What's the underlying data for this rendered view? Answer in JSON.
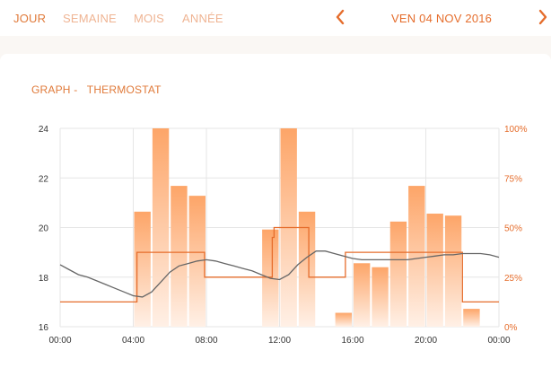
{
  "tabs": [
    {
      "label": "JOUR",
      "active": true
    },
    {
      "label": "SEMAINE",
      "active": false
    },
    {
      "label": "MOIS",
      "active": false
    },
    {
      "label": "ANNÉE",
      "active": false
    }
  ],
  "date_nav": {
    "prev_icon": "chevron-left-icon",
    "next_icon": "chevron-right-icon",
    "date": "VEN 04 NOV 2016"
  },
  "graph": {
    "title": "GRAPH -   THERMOSTAT"
  },
  "colors": {
    "accent": "#e56d2c",
    "bar_top": "#fda568",
    "bar_bottom": "#fff0e6",
    "temp_line": "#666666",
    "grid": "#e6e6e6"
  },
  "chart_data": {
    "type": "bar",
    "x_ticks": [
      "00:00",
      "04:00",
      "08:00",
      "12:00",
      "16:00",
      "20:00",
      "00:00"
    ],
    "x_range_hours": [
      0,
      24
    ],
    "y_left": {
      "range": [
        16,
        24
      ],
      "ticks": [
        "16",
        "18",
        "20",
        "22",
        "24"
      ]
    },
    "y_right": {
      "range": [
        0,
        100
      ],
      "ticks": [
        "0%",
        "25%",
        "50%",
        "75%",
        "100%"
      ]
    },
    "bars_percent": [
      {
        "start": 4.0,
        "end": 5.0,
        "value": 58
      },
      {
        "start": 5.0,
        "end": 6.0,
        "value": 100
      },
      {
        "start": 6.0,
        "end": 7.0,
        "value": 71
      },
      {
        "start": 7.0,
        "end": 8.0,
        "value": 66
      },
      {
        "start": 11.0,
        "end": 12.0,
        "value": 49
      },
      {
        "start": 12.0,
        "end": 13.0,
        "value": 100
      },
      {
        "start": 13.0,
        "end": 14.0,
        "value": 58
      },
      {
        "start": 15.0,
        "end": 16.0,
        "value": 7
      },
      {
        "start": 16.0,
        "end": 17.0,
        "value": 32
      },
      {
        "start": 17.0,
        "end": 18.0,
        "value": 30
      },
      {
        "start": 18.0,
        "end": 19.0,
        "value": 53
      },
      {
        "start": 19.0,
        "end": 20.0,
        "value": 71
      },
      {
        "start": 20.0,
        "end": 21.0,
        "value": 57
      },
      {
        "start": 21.0,
        "end": 22.0,
        "value": 56
      },
      {
        "start": 22.0,
        "end": 23.0,
        "value": 9
      }
    ],
    "setpoint_c": [
      [
        0,
        17.0
      ],
      [
        4.2,
        17.0
      ],
      [
        4.2,
        19.0
      ],
      [
        7.9,
        19.0
      ],
      [
        7.9,
        18.0
      ],
      [
        11.6,
        18.0
      ],
      [
        11.6,
        19.6
      ],
      [
        11.7,
        19.6
      ],
      [
        11.7,
        20.0
      ],
      [
        13.6,
        20.0
      ],
      [
        13.6,
        18.0
      ],
      [
        15.6,
        18.0
      ],
      [
        15.6,
        19.0
      ],
      [
        22.0,
        19.0
      ],
      [
        22.0,
        17.0
      ],
      [
        24,
        17.0
      ]
    ],
    "temperature_c": [
      [
        0.0,
        18.5
      ],
      [
        0.5,
        18.3
      ],
      [
        1.0,
        18.1
      ],
      [
        1.5,
        18.0
      ],
      [
        2.0,
        17.85
      ],
      [
        2.5,
        17.7
      ],
      [
        3.0,
        17.55
      ],
      [
        3.5,
        17.4
      ],
      [
        4.0,
        17.25
      ],
      [
        4.5,
        17.2
      ],
      [
        5.0,
        17.4
      ],
      [
        5.5,
        17.8
      ],
      [
        6.0,
        18.2
      ],
      [
        6.5,
        18.45
      ],
      [
        7.0,
        18.55
      ],
      [
        7.5,
        18.65
      ],
      [
        8.0,
        18.7
      ],
      [
        8.5,
        18.65
      ],
      [
        9.0,
        18.55
      ],
      [
        9.5,
        18.45
      ],
      [
        10.0,
        18.35
      ],
      [
        10.5,
        18.25
      ],
      [
        11.0,
        18.1
      ],
      [
        11.5,
        17.95
      ],
      [
        12.0,
        17.9
      ],
      [
        12.5,
        18.1
      ],
      [
        13.0,
        18.5
      ],
      [
        13.5,
        18.8
      ],
      [
        14.0,
        19.05
      ],
      [
        14.5,
        19.05
      ],
      [
        15.0,
        18.95
      ],
      [
        15.5,
        18.85
      ],
      [
        16.0,
        18.75
      ],
      [
        16.5,
        18.7
      ],
      [
        17.0,
        18.7
      ],
      [
        17.5,
        18.7
      ],
      [
        18.0,
        18.7
      ],
      [
        18.5,
        18.7
      ],
      [
        19.0,
        18.7
      ],
      [
        19.5,
        18.75
      ],
      [
        20.0,
        18.8
      ],
      [
        20.5,
        18.85
      ],
      [
        21.0,
        18.9
      ],
      [
        21.5,
        18.9
      ],
      [
        22.0,
        18.95
      ],
      [
        22.5,
        18.95
      ],
      [
        23.0,
        18.95
      ],
      [
        23.5,
        18.9
      ],
      [
        24.0,
        18.8
      ]
    ]
  }
}
